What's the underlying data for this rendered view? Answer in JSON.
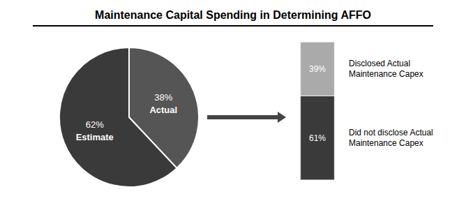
{
  "chart_data": [
    {
      "type": "pie",
      "title": "Maintenance Capital Spending in Determining AFFO",
      "categories": [
        "Actual",
        "Estimate"
      ],
      "values": [
        38,
        62
      ],
      "value_labels": [
        "38%",
        "62%"
      ],
      "colors": [
        "#555555",
        "#3a3a3a"
      ],
      "data_labels": true
    },
    {
      "type": "bar",
      "stacked": true,
      "categories": [
        null
      ],
      "series": [
        {
          "name": "Did not disclose Actual\nMaintenance Capex",
          "color": "#3a3a3a",
          "values": [
            61
          ],
          "value_labels": [
            "61%"
          ]
        },
        {
          "name": "Disclosed Actual\nMaintenance Capex",
          "color": "#aaaaaa",
          "values": [
            39
          ],
          "value_labels": [
            "39%"
          ]
        }
      ],
      "ylim": [
        0,
        100
      ],
      "tick_labels": false,
      "data_labels": true
    }
  ]
}
